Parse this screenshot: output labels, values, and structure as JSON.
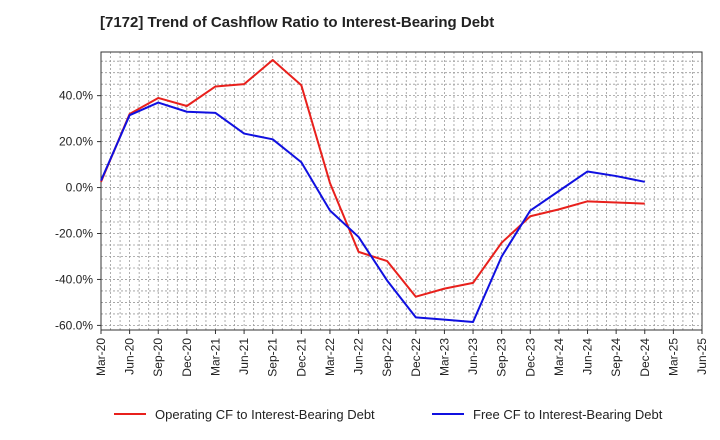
{
  "chart_data": {
    "type": "line",
    "title": "[7172]  Trend of Cashflow Ratio to Interest-Bearing Debt",
    "xlabel": "",
    "ylabel": "",
    "categories": [
      "Mar-20",
      "Jun-20",
      "Sep-20",
      "Dec-20",
      "Mar-21",
      "Jun-21",
      "Sep-21",
      "Dec-21",
      "Mar-22",
      "Jun-22",
      "Sep-22",
      "Dec-22",
      "Mar-23",
      "Jun-23",
      "Sep-23",
      "Dec-23",
      "Mar-24",
      "Jun-24",
      "Sep-24",
      "Dec-24",
      "Mar-25",
      "Jun-25"
    ],
    "ylim": [
      -62,
      59
    ],
    "yticks": [
      -60,
      -40,
      -20,
      0,
      20,
      40
    ],
    "ytick_labels": [
      "-60.0%",
      "-40.0%",
      "-20.0%",
      "0.0%",
      "20.0%",
      "40.0%"
    ],
    "grid": true,
    "legend_position": "bottom",
    "series": [
      {
        "name": "Operating CF to Interest-Bearing Debt",
        "color": "#e8201c",
        "x": [
          "Mar-20",
          "Jun-20",
          "Sep-20",
          "Dec-20",
          "Mar-21",
          "Jun-21",
          "Sep-21",
          "Dec-21",
          "Mar-22",
          "Jun-22",
          "Sep-22",
          "Dec-22",
          "Mar-23",
          "Jun-23",
          "Sep-23",
          "Dec-23",
          "Mar-24",
          "Jun-24",
          "Sep-24",
          "Dec-24"
        ],
        "values": [
          2.5,
          32.0,
          39.0,
          35.5,
          44.0,
          45.0,
          55.5,
          44.5,
          2.0,
          -28.0,
          -32.0,
          -47.5,
          -44.0,
          -41.5,
          -24.0,
          -12.5,
          -9.5,
          -6.0,
          -6.5,
          -7.0
        ]
      },
      {
        "name": "Free CF to Interest-Bearing Debt",
        "color": "#1010e0",
        "x": [
          "Mar-20",
          "Jun-20",
          "Sep-20",
          "Dec-20",
          "Mar-21",
          "Jun-21",
          "Sep-21",
          "Dec-21",
          "Mar-22",
          "Jun-22",
          "Sep-22",
          "Dec-22",
          "Mar-23",
          "Jun-23",
          "Sep-23",
          "Dec-23",
          "Mar-24",
          "Jun-24",
          "Sep-24",
          "Dec-24"
        ],
        "values": [
          3.0,
          31.5,
          37.0,
          33.0,
          32.5,
          23.5,
          21.0,
          11.0,
          -10.0,
          -21.5,
          -40.5,
          -56.5,
          -57.5,
          -58.5,
          -30.0,
          -10.0,
          -1.5,
          7.0,
          5.0,
          2.5
        ]
      }
    ]
  }
}
